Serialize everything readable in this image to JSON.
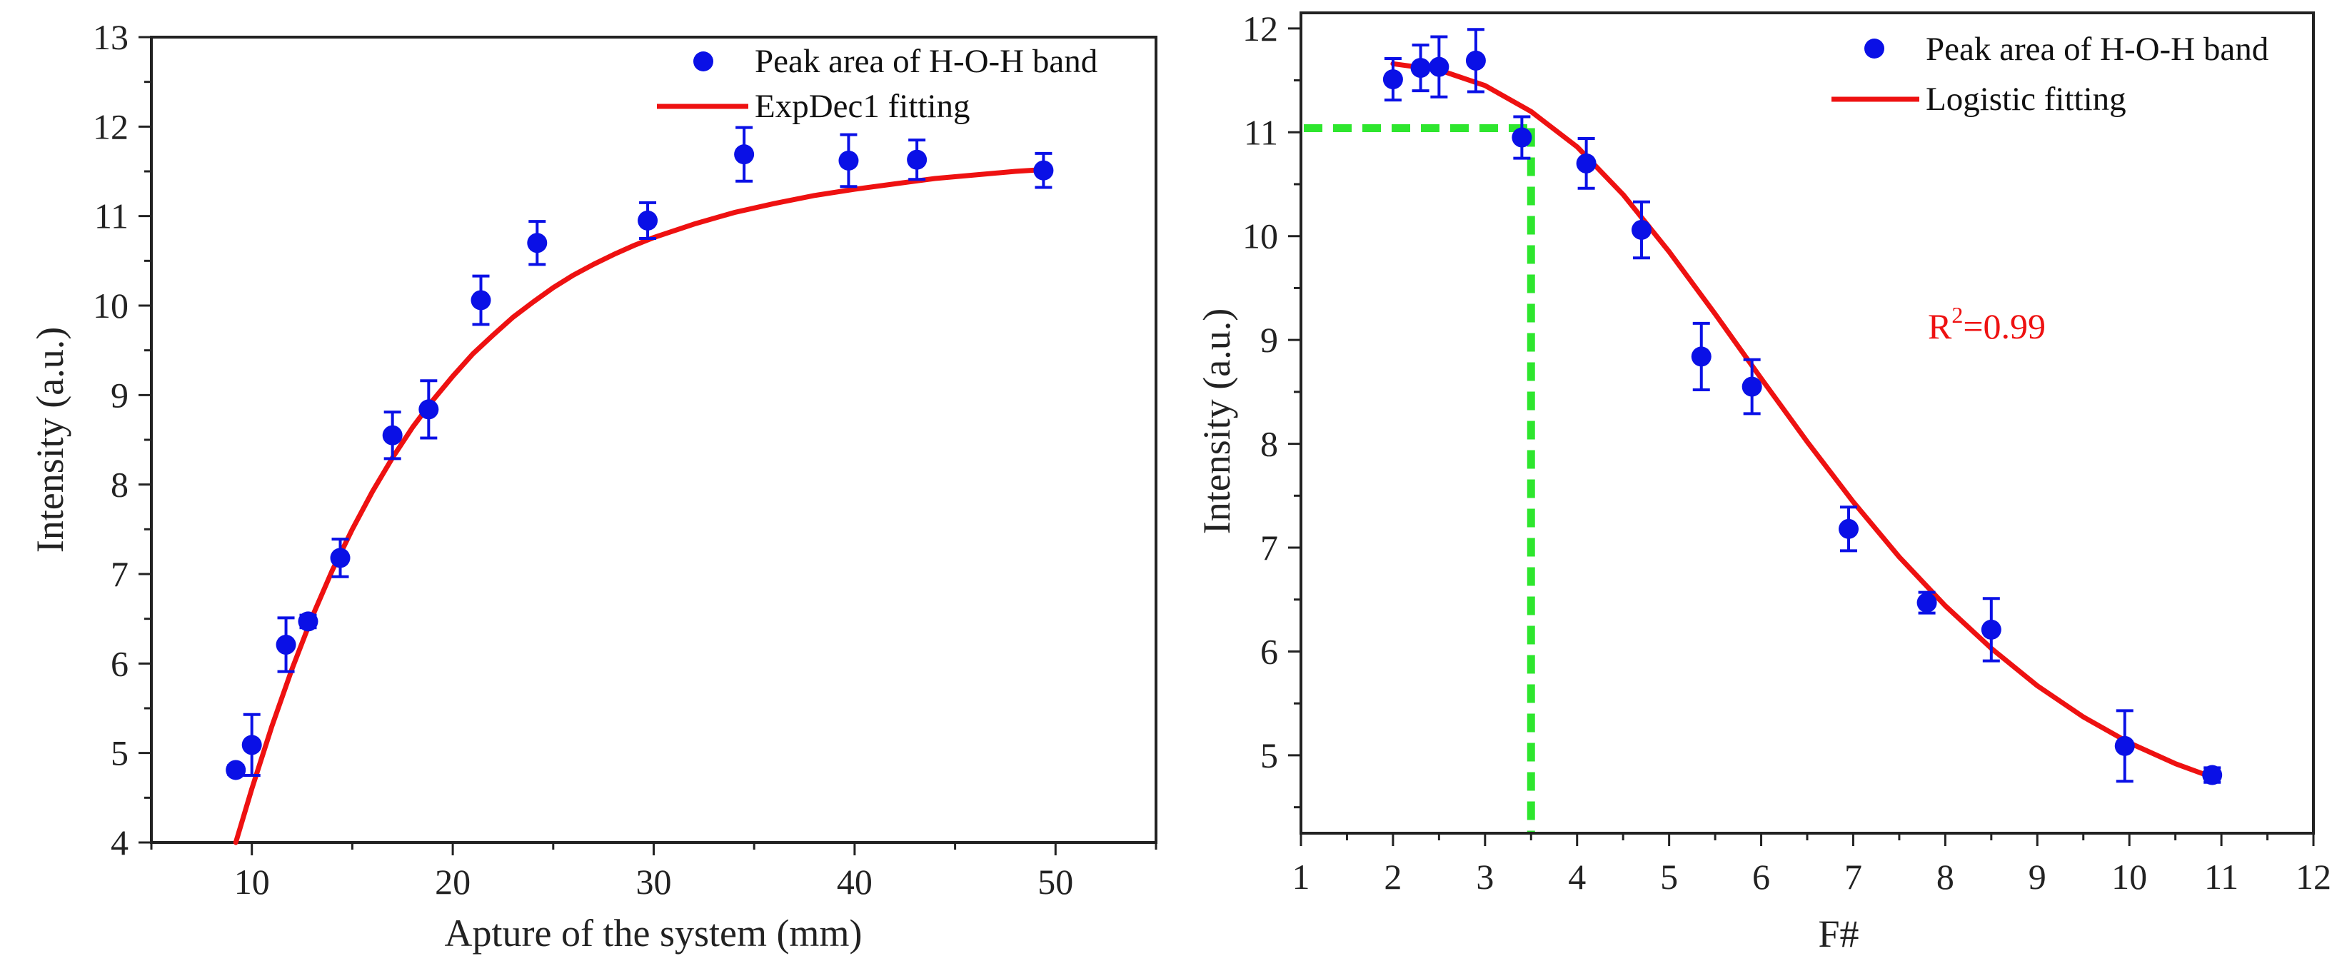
{
  "colors": {
    "points": "#0a10e6",
    "fit": "#ee1111",
    "guide": "#2ee62e",
    "axis": "#222222"
  },
  "chart_data": [
    {
      "type": "scatter",
      "xlabel": "Apture of the system (mm)",
      "ylabel": "Intensity (a.u.)",
      "xlim": [
        5,
        55
      ],
      "ylim": [
        4,
        13
      ],
      "xticks": [
        10,
        20,
        30,
        40,
        50
      ],
      "yticks": [
        4,
        5,
        6,
        7,
        8,
        9,
        10,
        11,
        12,
        13
      ],
      "grid": false,
      "legend_position": "top-right",
      "legend": [
        {
          "label": "Peak area of H-O-H band",
          "kind": "marker"
        },
        {
          "label": "ExpDec1 fitting",
          "kind": "line"
        }
      ],
      "series": [
        {
          "name": "Peak area of H-O-H band",
          "kind": "points",
          "x": [
            9.2,
            10.0,
            11.7,
            12.8,
            14.4,
            17.0,
            18.8,
            21.4,
            24.2,
            29.7,
            34.5,
            39.7,
            43.1,
            49.4
          ],
          "y": [
            4.81,
            5.09,
            6.21,
            6.47,
            7.18,
            8.55,
            8.84,
            10.06,
            10.7,
            10.95,
            11.69,
            11.62,
            11.63,
            11.51
          ],
          "err": [
            0.05,
            0.34,
            0.3,
            0.07,
            0.21,
            0.26,
            0.32,
            0.27,
            0.24,
            0.2,
            0.3,
            0.29,
            0.22,
            0.19
          ]
        },
        {
          "name": "ExpDec1 fitting",
          "kind": "line",
          "x": [
            9.2,
            10,
            11,
            12,
            13,
            14,
            15,
            16,
            17,
            18,
            19,
            20,
            21,
            22,
            23,
            24,
            25,
            26,
            27,
            28,
            29,
            30,
            32,
            34,
            36,
            38,
            40,
            42,
            44,
            46,
            48,
            49.4
          ],
          "y": [
            4.0,
            4.6,
            5.3,
            5.94,
            6.52,
            7.04,
            7.5,
            7.92,
            8.3,
            8.64,
            8.94,
            9.21,
            9.46,
            9.67,
            9.87,
            10.04,
            10.2,
            10.34,
            10.46,
            10.57,
            10.67,
            10.76,
            10.91,
            11.04,
            11.14,
            11.23,
            11.3,
            11.36,
            11.42,
            11.46,
            11.5,
            11.52
          ]
        }
      ]
    },
    {
      "type": "scatter",
      "xlabel": "F#",
      "ylabel": "Intensity (a.u.)",
      "xlim": [
        1,
        12
      ],
      "ylim": [
        4.25,
        12.15
      ],
      "xticks": [
        1,
        2,
        3,
        4,
        5,
        6,
        7,
        8,
        9,
        10,
        11,
        12
      ],
      "yticks": [
        5,
        6,
        7,
        8,
        9,
        10,
        11,
        12
      ],
      "grid": false,
      "legend_position": "top-right",
      "legend": [
        {
          "label": "Peak area of H-O-H band",
          "kind": "marker"
        },
        {
          "label": "Logistic fitting",
          "kind": "line"
        }
      ],
      "annotation": {
        "base": "R",
        "sup": "2",
        "rest": "=0.99"
      },
      "guide": {
        "x": 3.5,
        "y": 11.04
      },
      "series": [
        {
          "name": "Peak area of H-O-H band",
          "kind": "points",
          "x": [
            2.0,
            2.3,
            2.5,
            2.9,
            3.4,
            4.1,
            4.7,
            5.35,
            5.9,
            6.95,
            7.8,
            8.5,
            9.95,
            10.9
          ],
          "y": [
            11.51,
            11.62,
            11.63,
            11.69,
            10.95,
            10.7,
            10.06,
            8.84,
            8.55,
            7.18,
            6.47,
            6.21,
            5.09,
            4.81
          ],
          "err": [
            0.2,
            0.22,
            0.29,
            0.3,
            0.2,
            0.24,
            0.27,
            0.32,
            0.26,
            0.21,
            0.1,
            0.3,
            0.34,
            0.07
          ]
        },
        {
          "name": "Logistic fitting",
          "kind": "line",
          "x": [
            2.0,
            2.5,
            3.0,
            3.5,
            4.0,
            4.5,
            5.0,
            5.5,
            6.0,
            6.5,
            7.0,
            7.5,
            8.0,
            8.5,
            9.0,
            9.5,
            10.0,
            10.5,
            10.9
          ],
          "y": [
            11.66,
            11.6,
            11.45,
            11.2,
            10.86,
            10.4,
            9.85,
            9.25,
            8.63,
            8.02,
            7.44,
            6.91,
            6.44,
            6.03,
            5.67,
            5.37,
            5.12,
            4.92,
            4.79
          ]
        }
      ]
    }
  ]
}
